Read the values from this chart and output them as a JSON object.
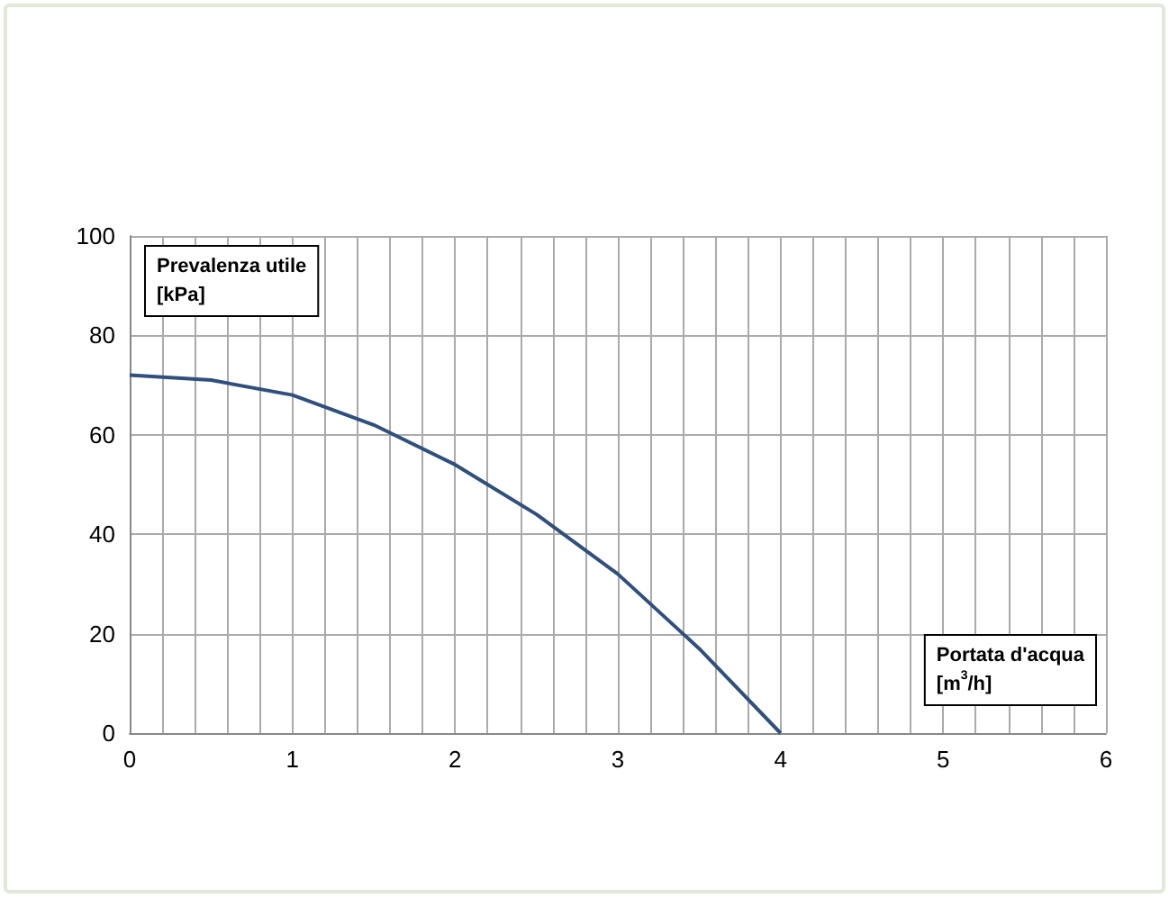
{
  "chart_data": {
    "type": "line",
    "xlabel": "Portata d'acqua [m$^{3}$/h]",
    "ylabel": "Prevalenza utile [kPa]",
    "x": [
      0,
      0.5,
      1,
      1.5,
      2,
      2.5,
      3,
      3.5,
      4
    ],
    "series": [
      {
        "color": "#2f4f7f",
        "values": [
          72,
          71,
          68,
          62,
          54,
          44,
          32,
          17,
          0
        ]
      }
    ],
    "xlim": [
      0,
      6
    ],
    "ylim": [
      0,
      100
    ],
    "xticks": [
      0,
      {
        "value": 0.2,
        "label": null
      },
      {
        "value": 0.4,
        "label": null
      },
      {
        "value": 0.6,
        "label": null
      },
      {
        "value": 0.8,
        "label": null
      },
      1,
      {
        "value": 1.2,
        "label": null
      },
      {
        "value": 1.4,
        "label": null
      },
      {
        "value": 1.6,
        "label": null
      },
      {
        "value": 1.8,
        "label": null
      },
      2,
      {
        "value": 2.2,
        "label": null
      },
      {
        "value": 2.4,
        "label": null
      },
      {
        "value": 2.6,
        "label": null
      },
      {
        "value": 2.8,
        "label": null
      },
      3,
      {
        "value": 3.2,
        "label": null
      },
      {
        "value": 3.4,
        "label": null
      },
      {
        "value": 3.6,
        "label": null
      },
      {
        "value": 3.8,
        "label": null
      },
      4,
      {
        "value": 4.2,
        "label": null
      },
      {
        "value": 4.4,
        "label": null
      },
      {
        "value": 4.6,
        "label": null
      },
      {
        "value": 4.8,
        "label": null
      },
      5,
      {
        "value": 5.2,
        "label": null
      },
      {
        "value": 5.4,
        "label": null
      },
      {
        "value": 5.6,
        "label": null
      },
      {
        "value": 5.8,
        "label": null
      },
      6
    ],
    "yticks": [
      0,
      20,
      40,
      60,
      80,
      100
    ],
    "grid": true,
    "marker": "none",
    "line_style": "solid"
  }
}
